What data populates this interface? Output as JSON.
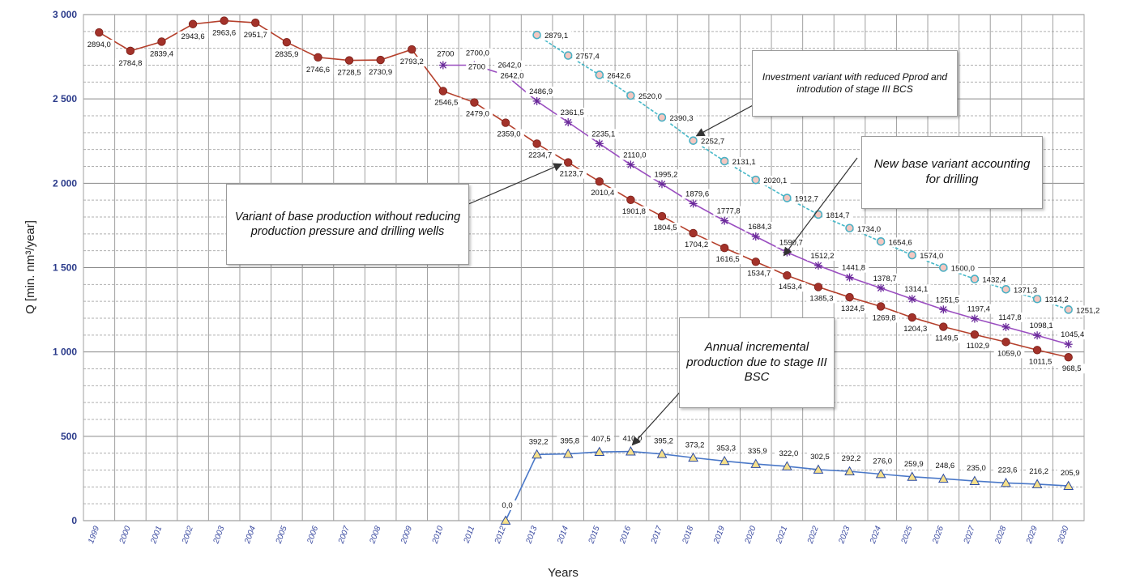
{
  "chart_data": {
    "type": "line",
    "xlabel": "Years",
    "ylabel": "Q [min. nm³/year]",
    "ylim": [
      0,
      3000
    ],
    "yticks": [
      0,
      500,
      1000,
      1500,
      2000,
      2500,
      3000
    ],
    "ytick_labels": [
      "0",
      "500",
      "1 000",
      "1 500",
      "2 000",
      "2 500",
      "3 000"
    ],
    "categories": [
      "1999",
      "2000",
      "2001",
      "2002",
      "2003",
      "2004",
      "2005",
      "2006",
      "2007",
      "2008",
      "2009",
      "2010",
      "2011",
      "2012",
      "2013",
      "2014",
      "2015",
      "2016",
      "2017",
      "2018",
      "2019",
      "2020",
      "2021",
      "2022",
      "2023",
      "2024",
      "2025",
      "2026",
      "2027",
      "2028",
      "2029",
      "2030"
    ],
    "grid": true,
    "series": [
      {
        "key": "base",
        "color": "#b5402c",
        "marker": "circle",
        "x": [
          "1999",
          "2000",
          "2001",
          "2002",
          "2003",
          "2004",
          "2005",
          "2006",
          "2007",
          "2008",
          "2009",
          "2010",
          "2011",
          "2012",
          "2013",
          "2014",
          "2015",
          "2016",
          "2017",
          "2018",
          "2019",
          "2020",
          "2021",
          "2022",
          "2023",
          "2024",
          "2025",
          "2026",
          "2027",
          "2028",
          "2029",
          "2030"
        ],
        "values": [
          2894.0,
          2784.8,
          2839.4,
          2943.6,
          2963.6,
          2951.7,
          2835.9,
          2746.6,
          2728.5,
          2730.9,
          2793.2,
          2546.5,
          2479.0,
          2359.0,
          2234.7,
          2123.7,
          2010.4,
          1901.8,
          1804.5,
          1704.2,
          1616.5,
          1534.7,
          1453.4,
          1385.3,
          1324.5,
          1269.8,
          1204.3,
          1149.5,
          1102.9,
          1059.0,
          1011.5,
          968.5
        ],
        "labels": [
          "2894,0",
          "2784,8",
          "2839,4",
          "2943,6",
          "2963,6",
          "2951,7",
          "2835,9",
          "2746,6",
          "2728,5",
          "2730,9",
          "2793,2",
          "2546,5",
          "2479,0",
          "2359,0",
          "2234,7",
          "2123,7",
          "2010,4",
          "1901,8",
          "1804,5",
          "1704,2",
          "1616,5",
          "1534,7",
          "1453,4",
          "1385,3",
          "1324,5",
          "1269,8",
          "1204,3",
          "1149,5",
          "1102,9",
          "1059,0",
          "1011,5",
          "968,5"
        ]
      },
      {
        "key": "drilling",
        "color": "#9a4ec0",
        "marker": "star",
        "x": [
          "2010",
          "2011",
          "2012",
          "2013",
          "2014",
          "2015",
          "2016",
          "2017",
          "2018",
          "2019",
          "2020",
          "2021",
          "2022",
          "2023",
          "2024",
          "2025",
          "2026",
          "2027",
          "2028",
          "2029",
          "2030"
        ],
        "values": [
          2700.0,
          2700.0,
          2642.0,
          2486.9,
          2361.5,
          2235.1,
          2110.0,
          1995.2,
          1879.6,
          1777.8,
          1684.3,
          1590.7,
          1512.2,
          1441.8,
          1378.7,
          1314.1,
          1251.5,
          1197.4,
          1147.8,
          1098.1,
          1045.4
        ],
        "labels": [
          "2700",
          "2700",
          "2642,0",
          "2486,9",
          "2361,5",
          "2235,1",
          "2110,0",
          "1995,2",
          "1879,6",
          "1777,8",
          "1684,3",
          "1590,7",
          "1512,2",
          "1441,8",
          "1378,7",
          "1314,1",
          "1251,5",
          "1197,4",
          "1147,8",
          "1098,1",
          "1045,4"
        ]
      },
      {
        "key": "investment",
        "color": "#45b8c8",
        "marker": "ring",
        "x": [
          "2013",
          "2014",
          "2015",
          "2016",
          "2017",
          "2018",
          "2019",
          "2020",
          "2021",
          "2022",
          "2023",
          "2024",
          "2025",
          "2026",
          "2027",
          "2028",
          "2029",
          "2030"
        ],
        "values": [
          2879.1,
          2757.4,
          2642.6,
          2520.0,
          2390.3,
          2252.7,
          2131.1,
          2020.1,
          1912.7,
          1814.7,
          1734.0,
          1654.6,
          1574.0,
          1500.0,
          1432.4,
          1371.3,
          1314.2,
          1251.2
        ],
        "labels": [
          "2879,1",
          "2757,4",
          "2642,6",
          "2520,0",
          "2390,3",
          "2252,7",
          "2131,1",
          "2020,1",
          "1912,7",
          "1814,7",
          "1734,0",
          "1654,6",
          "1574,0",
          "1500,0",
          "1432,4",
          "1371,3",
          "1314,2",
          "1251,2"
        ]
      },
      {
        "key": "incremental",
        "color": "#4a78c8",
        "marker": "triangle",
        "x": [
          "2012",
          "2013",
          "2014",
          "2015",
          "2016",
          "2017",
          "2018",
          "2019",
          "2020",
          "2021",
          "2022",
          "2023",
          "2024",
          "2025",
          "2026",
          "2027",
          "2028",
          "2029",
          "2030"
        ],
        "values": [
          0.0,
          392.2,
          395.8,
          407.5,
          410.0,
          395.2,
          373.2,
          353.3,
          335.9,
          322.0,
          302.5,
          292.2,
          276.0,
          259.9,
          248.6,
          235.0,
          223.6,
          216.2,
          205.9
        ],
        "labels": [
          "0,0",
          "392,2",
          "395,8",
          "407,5",
          "410,0",
          "395,2",
          "373,2",
          "353,3",
          "335,9",
          "322,0",
          "302,5",
          "292,2",
          "276,0",
          "259,9",
          "248,6",
          "235,0",
          "223,6",
          "216,2",
          "205,9"
        ]
      }
    ],
    "extra_labels": [
      "2700,0",
      "2642,0"
    ],
    "annotations": [
      {
        "key": "investment",
        "text": "Investment variant with reduced Pprod and introdution of stage III BCS"
      },
      {
        "key": "drilling",
        "text": "New base variant accounting for drilling"
      },
      {
        "key": "base",
        "text": "Variant of base production without reducing production pressure and drilling wells"
      },
      {
        "key": "incremental",
        "text": "Annual incremental production due to stage III BSC"
      }
    ]
  }
}
